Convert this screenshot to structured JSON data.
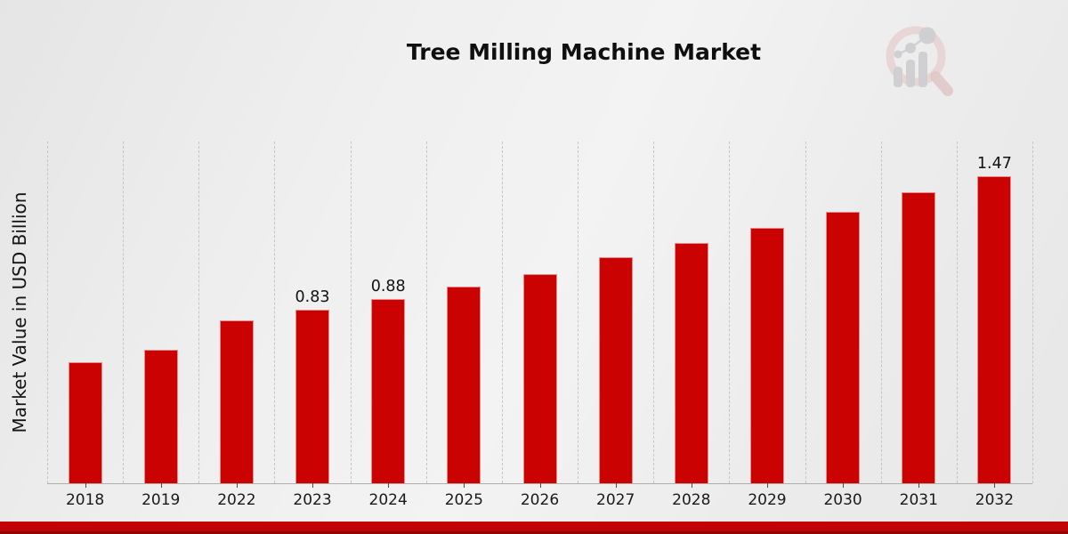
{
  "chart_data": {
    "type": "bar",
    "title": "Tree Milling Machine Market",
    "xlabel": "",
    "ylabel": "Market Value in USD Billion",
    "categories": [
      "2018",
      "2019",
      "2022",
      "2023",
      "2024",
      "2025",
      "2026",
      "2027",
      "2028",
      "2029",
      "2030",
      "2031",
      "2032"
    ],
    "values": [
      0.58,
      0.64,
      0.78,
      0.83,
      0.88,
      0.94,
      1.0,
      1.08,
      1.15,
      1.22,
      1.3,
      1.39,
      1.47
    ],
    "data_labels": {
      "2023": "0.83",
      "2024": "0.88",
      "2032": "1.47"
    },
    "ylim": [
      0,
      1.634
    ],
    "grid": "vertical-dashed",
    "legend": "none",
    "bar_color": "#cb0202"
  },
  "watermark": {
    "icon": "magnifier-bar-chart-logo",
    "ring_color": "#e6c9c9",
    "handle_color": "#dfbcbc",
    "bars_color": "#c6c6ca"
  },
  "footer": {
    "band_color": "#c30404",
    "band_edge_color": "#8e0707"
  }
}
